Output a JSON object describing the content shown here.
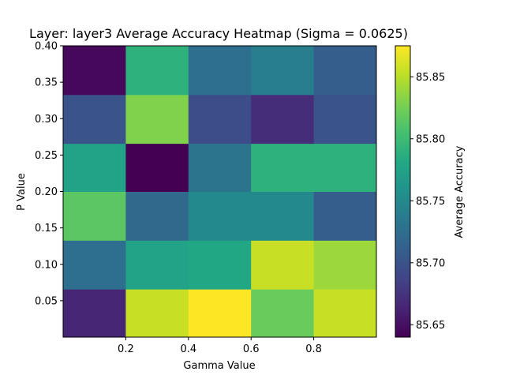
{
  "chart_data": {
    "type": "heatmap",
    "title": "Layer: layer3 Average Accuracy Heatmap (Sigma = 0.0625)",
    "xlabel": "Gamma Value",
    "ylabel": "P Value",
    "xlim": [
      0.0,
      1.0
    ],
    "ylim": [
      0.0,
      0.4
    ],
    "x_bins": [
      0.0,
      0.2,
      0.4,
      0.6,
      0.8,
      1.0
    ],
    "y_bins": [
      0.0,
      0.066,
      0.133,
      0.2,
      0.266,
      0.333,
      0.4
    ],
    "x_ticks": [
      0.2,
      0.4,
      0.6,
      0.8
    ],
    "x_tick_labels": [
      "0.2",
      "0.4",
      "0.6",
      "0.8"
    ],
    "y_ticks": [
      0.05,
      0.1,
      0.15,
      0.2,
      0.25,
      0.3,
      0.35,
      0.4
    ],
    "y_tick_labels": [
      "0.05",
      "0.10",
      "0.15",
      "0.20",
      "0.25",
      "0.30",
      "0.35",
      "0.40"
    ],
    "values_bottom_to_top": [
      [
        85.665,
        85.855,
        85.875,
        85.82,
        85.855
      ],
      [
        85.725,
        85.775,
        85.78,
        85.855,
        85.84
      ],
      [
        85.815,
        85.72,
        85.75,
        85.75,
        85.71
      ],
      [
        85.775,
        85.64,
        85.73,
        85.79,
        85.79
      ],
      [
        85.7,
        85.83,
        85.695,
        85.67,
        85.7
      ],
      [
        85.645,
        85.79,
        85.725,
        85.74,
        85.71
      ]
    ],
    "colorbar": {
      "label": "Average Accuracy",
      "colormap": "viridis",
      "vmin": 85.64,
      "vmax": 85.875,
      "ticks": [
        85.65,
        85.7,
        85.75,
        85.8,
        85.85
      ],
      "tick_labels": [
        "85.65",
        "85.70",
        "85.75",
        "85.80",
        "85.85"
      ]
    },
    "grid": false,
    "legend": "none"
  }
}
